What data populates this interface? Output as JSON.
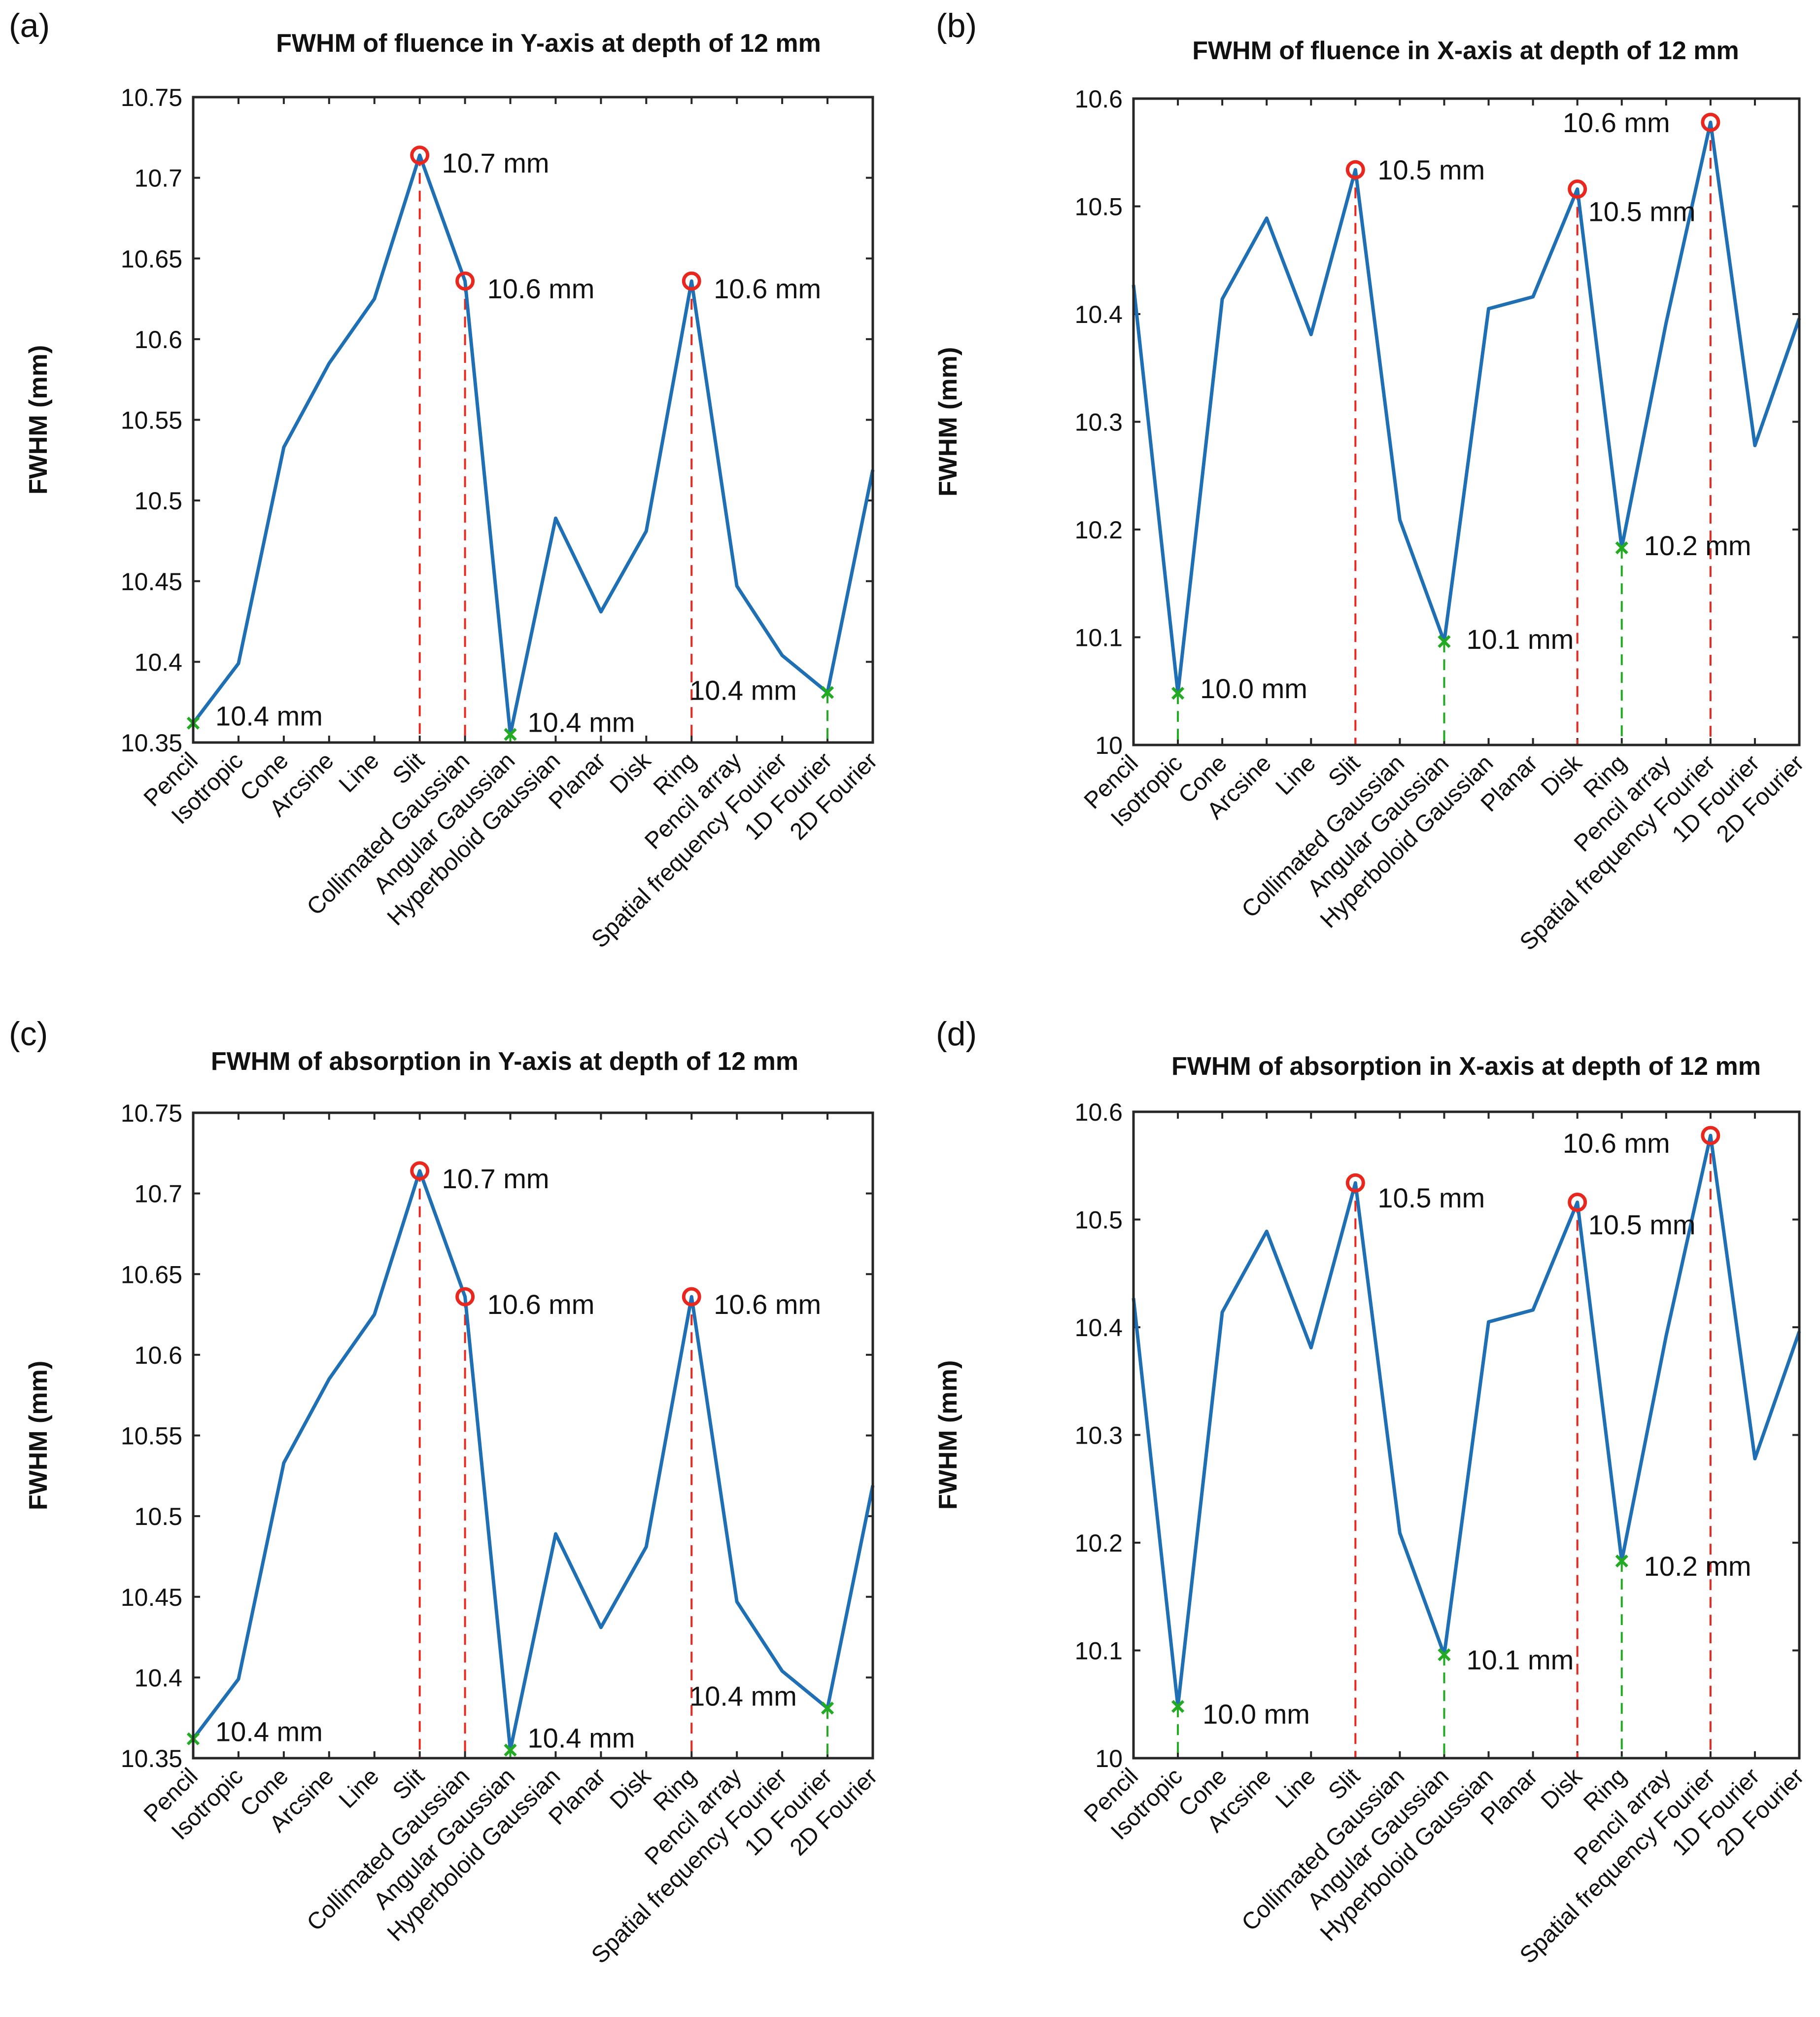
{
  "chart_data": [
    {
      "panel_label": "(a)",
      "type": "line",
      "title": "FWHM of fluence in Y-axis at depth of 12 mm",
      "xlabel": "",
      "ylabel": "FWHM (mm)",
      "ylim": [
        10.35,
        10.75
      ],
      "yticks": [
        10.35,
        10.4,
        10.45,
        10.5,
        10.55,
        10.6,
        10.65,
        10.7,
        10.75
      ],
      "ytick_labels": [
        "10.35",
        "10.4",
        "10.45",
        "10.5",
        "10.55",
        "10.6",
        "10.65",
        "10.7",
        "10.75"
      ],
      "categories": [
        "Pencil",
        "Isotropic",
        "Cone",
        "Arcsine",
        "Line",
        "Slit",
        "Collimated Gaussian",
        "Angular Gaussian",
        "Hyperboloid Gaussian",
        "Planar",
        "Disk",
        "Ring",
        "Pencil array",
        "Spatial frequency Fourier",
        "1D Fourier",
        "2D Fourier"
      ],
      "values": [
        10.362,
        10.399,
        10.533,
        10.585,
        10.625,
        10.714,
        10.636,
        10.355,
        10.489,
        10.431,
        10.481,
        10.636,
        10.447,
        10.404,
        10.381,
        10.519
      ],
      "series_color": "#1f6fb4",
      "grid": false,
      "maxima": [
        {
          "index": 5,
          "label": "10.7 mm"
        },
        {
          "index": 6,
          "label": "10.6 mm"
        },
        {
          "index": 11,
          "label": "10.6 mm"
        }
      ],
      "minima": [
        {
          "index": 0,
          "label": "10.4 mm"
        },
        {
          "index": 7,
          "label": "10.4 mm"
        },
        {
          "index": 14,
          "label": "10.4 mm"
        }
      ]
    },
    {
      "panel_label": "(b)",
      "type": "line",
      "title": "FWHM of fluence in X-axis at depth of 12 mm",
      "xlabel": "",
      "ylabel": "FWHM (mm)",
      "ylim": [
        10.0,
        10.6
      ],
      "yticks": [
        10.0,
        10.1,
        10.2,
        10.3,
        10.4,
        10.5,
        10.6
      ],
      "ytick_labels": [
        "10",
        "10.1",
        "10.2",
        "10.3",
        "10.4",
        "10.5",
        "10.6"
      ],
      "categories": [
        "Pencil",
        "Isotropic",
        "Cone",
        "Arcsine",
        "Line",
        "Slit",
        "Collimated Gaussian",
        "Angular Gaussian",
        "Hyperboloid Gaussian",
        "Planar",
        "Disk",
        "Ring",
        "Pencil array",
        "Spatial frequency Fourier",
        "1D Fourier",
        "2D Fourier"
      ],
      "values": [
        10.427,
        10.048,
        10.414,
        10.489,
        10.381,
        10.534,
        10.209,
        10.096,
        10.405,
        10.416,
        10.516,
        10.183,
        10.392,
        10.578,
        10.278,
        10.396
      ],
      "series_color": "#1f6fb4",
      "grid": false,
      "maxima": [
        {
          "index": 5,
          "label": "10.5 mm"
        },
        {
          "index": 10,
          "label": "10.5 mm"
        },
        {
          "index": 13,
          "label": "10.6 mm"
        }
      ],
      "minima": [
        {
          "index": 1,
          "label": "10.0 mm"
        },
        {
          "index": 7,
          "label": "10.1 mm"
        },
        {
          "index": 11,
          "label": "10.2 mm"
        }
      ]
    },
    {
      "panel_label": "(c)",
      "type": "line",
      "title": "FWHM of absorption in Y-axis at depth of 12 mm",
      "xlabel": "",
      "ylabel": "FWHM (mm)",
      "ylim": [
        10.35,
        10.75
      ],
      "yticks": [
        10.35,
        10.4,
        10.45,
        10.5,
        10.55,
        10.6,
        10.65,
        10.7,
        10.75
      ],
      "ytick_labels": [
        "10.35",
        "10.4",
        "10.45",
        "10.5",
        "10.55",
        "10.6",
        "10.65",
        "10.7",
        "10.75"
      ],
      "categories": [
        "Pencil",
        "Isotropic",
        "Cone",
        "Arcsine",
        "Line",
        "Slit",
        "Collimated Gaussian",
        "Angular Gaussian",
        "Hyperboloid Gaussian",
        "Planar",
        "Disk",
        "Ring",
        "Pencil array",
        "Spatial frequency Fourier",
        "1D Fourier",
        "2D Fourier"
      ],
      "values": [
        10.362,
        10.399,
        10.533,
        10.585,
        10.625,
        10.714,
        10.636,
        10.355,
        10.489,
        10.431,
        10.481,
        10.636,
        10.447,
        10.404,
        10.381,
        10.519
      ],
      "series_color": "#1f6fb4",
      "grid": false,
      "maxima": [
        {
          "index": 5,
          "label": "10.7 mm"
        },
        {
          "index": 6,
          "label": "10.6 mm"
        },
        {
          "index": 11,
          "label": "10.6 mm"
        }
      ],
      "minima": [
        {
          "index": 0,
          "label": "10.4 mm"
        },
        {
          "index": 7,
          "label": "10.4 mm"
        },
        {
          "index": 14,
          "label": "10.4 mm"
        }
      ]
    },
    {
      "panel_label": "(d)",
      "type": "line",
      "title": "FWHM of absorption in X-axis at depth of 12 mm",
      "xlabel": "",
      "ylabel": "FWHM (mm)",
      "ylim": [
        10.0,
        10.6
      ],
      "yticks": [
        10.0,
        10.1,
        10.2,
        10.3,
        10.4,
        10.5,
        10.6
      ],
      "ytick_labels": [
        "10",
        "10.1",
        "10.2",
        "10.3",
        "10.4",
        "10.5",
        "10.6"
      ],
      "categories": [
        "Pencil",
        "Isotropic",
        "Cone",
        "Arcsine",
        "Line",
        "Slit",
        "Collimated Gaussian",
        "Angular Gaussian",
        "Hyperboloid Gaussian",
        "Planar",
        "Disk",
        "Ring",
        "Pencil array",
        "Spatial frequency Fourier",
        "1D Fourier",
        "2D Fourier"
      ],
      "values": [
        10.427,
        10.048,
        10.414,
        10.489,
        10.381,
        10.534,
        10.209,
        10.096,
        10.405,
        10.416,
        10.516,
        10.183,
        10.392,
        10.578,
        10.278,
        10.396
      ],
      "series_color": "#1f6fb4",
      "grid": false,
      "maxima": [
        {
          "index": 5,
          "label": "10.5 mm"
        },
        {
          "index": 10,
          "label": "10.5 mm"
        },
        {
          "index": 13,
          "label": "10.6 mm"
        }
      ],
      "minima": [
        {
          "index": 1,
          "label": "10.0 mm"
        },
        {
          "index": 7,
          "label": "10.1 mm"
        },
        {
          "index": 11,
          "label": "10.2 mm"
        }
      ]
    }
  ]
}
